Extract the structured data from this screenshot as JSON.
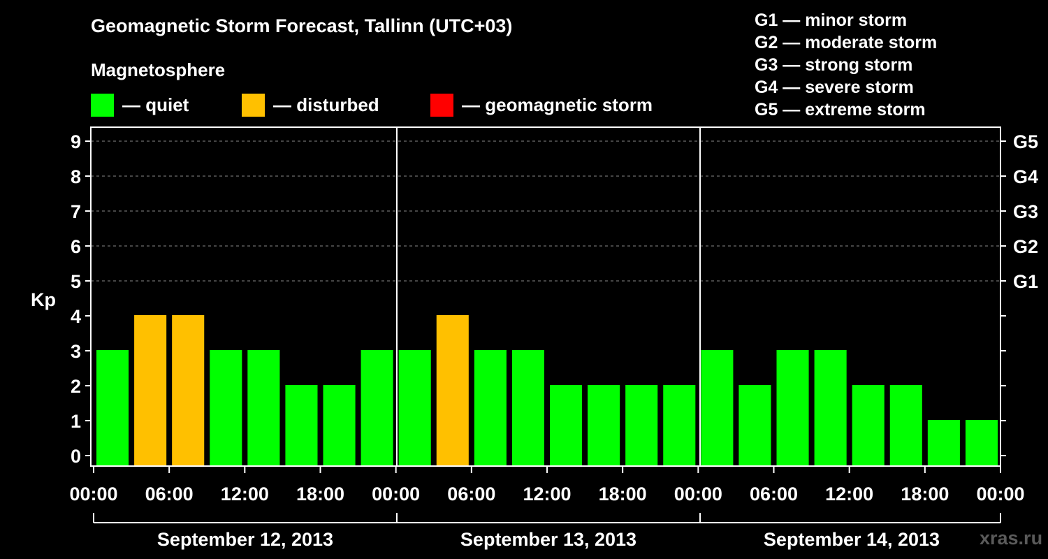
{
  "title": "Geomagnetic Storm Forecast, Tallinn (UTC+03)",
  "legend": {
    "heading": "Magnetosphere",
    "items": [
      {
        "label": "— quiet",
        "color": "#00ff00"
      },
      {
        "label": "— disturbed",
        "color": "#ffc000"
      },
      {
        "label": "— geomagnetic storm",
        "color": "#ff0000"
      }
    ]
  },
  "storm_levels": [
    "G1 — minor storm",
    "G2 — moderate storm",
    "G3 — strong storm",
    "G4 — severe storm",
    "G5 — extreme storm"
  ],
  "watermark": "xras.ru",
  "chart_data": {
    "type": "bar",
    "ylabel": "Kp",
    "ylim": [
      0,
      9
    ],
    "yticks": [
      "0",
      "1",
      "2",
      "3",
      "4",
      "5",
      "6",
      "7",
      "8",
      "9"
    ],
    "right_ticks": [
      {
        "kp": 5,
        "label": "G1"
      },
      {
        "kp": 6,
        "label": "G2"
      },
      {
        "kp": 7,
        "label": "G3"
      },
      {
        "kp": 8,
        "label": "G4"
      },
      {
        "kp": 9,
        "label": "G5"
      }
    ],
    "grid": "horizontal dashed at Kp 5-9",
    "x_tick_labels": [
      "00:00",
      "06:00",
      "12:00",
      "18:00",
      "00:00",
      "06:00",
      "12:00",
      "18:00",
      "00:00",
      "06:00",
      "12:00",
      "18:00",
      "00:00"
    ],
    "days": [
      "September 12, 2013",
      "September 13, 2013",
      "September 14, 2013"
    ],
    "interval_hours": 3,
    "values": [
      3,
      4,
      4,
      3,
      3,
      2,
      2,
      3,
      3,
      4,
      3,
      3,
      2,
      2,
      2,
      2,
      3,
      2,
      3,
      3,
      2,
      2,
      1,
      1
    ],
    "colors": {
      "quiet": "#00ff00",
      "disturbed": "#ffc000",
      "storm": "#ff0000"
    }
  }
}
